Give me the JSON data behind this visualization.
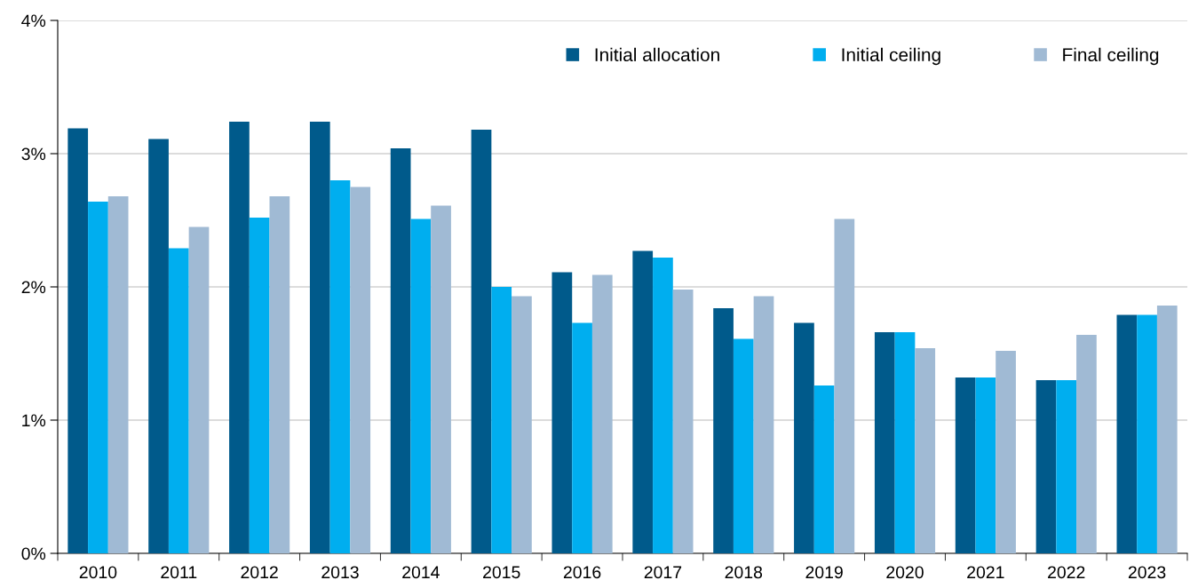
{
  "chart_data": {
    "type": "bar",
    "categories": [
      "2010",
      "2011",
      "2012",
      "2013",
      "2014",
      "2015",
      "2016",
      "2017",
      "2018",
      "2019",
      "2020",
      "2021",
      "2022",
      "2023"
    ],
    "series": [
      {
        "name": "Initial allocation",
        "color": "#005a8b",
        "values": [
          3.19,
          3.11,
          3.24,
          3.24,
          3.04,
          3.18,
          2.11,
          2.27,
          1.84,
          1.73,
          1.66,
          1.32,
          1.3,
          1.79
        ]
      },
      {
        "name": "Initial ceiling",
        "color": "#00aeef",
        "values": [
          2.64,
          2.29,
          2.52,
          2.8,
          2.51,
          2.0,
          1.73,
          2.22,
          1.61,
          1.26,
          1.66,
          1.32,
          1.3,
          1.79
        ]
      },
      {
        "name": "Final ceiling",
        "color": "#a0bad4",
        "values": [
          2.68,
          2.45,
          2.68,
          2.75,
          2.61,
          1.93,
          2.09,
          1.98,
          1.93,
          2.51,
          1.54,
          1.52,
          1.64,
          1.86
        ]
      }
    ],
    "ylim": [
      0,
      4
    ],
    "yticks": [
      {
        "value": 0,
        "label": "0%"
      },
      {
        "value": 1,
        "label": "1%"
      },
      {
        "value": 2,
        "label": "2%"
      },
      {
        "value": 3,
        "label": "3%"
      },
      {
        "value": 4,
        "label": "4%"
      }
    ],
    "grid": "y",
    "legend": "top right"
  }
}
